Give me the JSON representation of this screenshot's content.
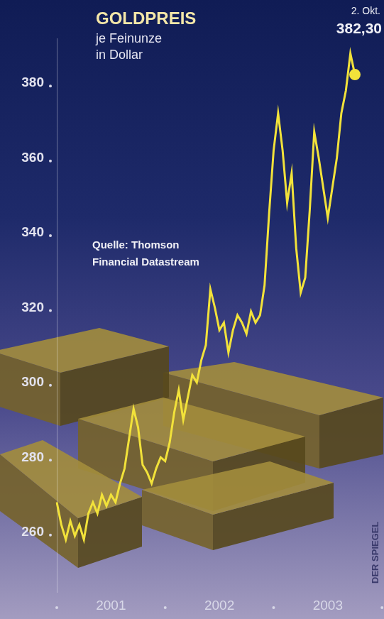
{
  "chart_data": {
    "type": "line",
    "title": "GOLDPREIS",
    "subtitle": [
      "je Feinunze",
      "in Dollar"
    ],
    "source": [
      "Quelle: Thomson",
      "Financial Datastream"
    ],
    "credit": "DER SPIEGEL",
    "annotations": [
      {
        "text": "2. Okt."
      },
      {
        "text": "382,30",
        "value": 382.3
      }
    ],
    "categories": [
      null,
      null,
      null,
      null,
      null,
      null,
      null,
      null,
      null,
      null,
      null,
      null,
      "2001",
      null,
      null,
      null,
      null,
      null,
      null,
      null,
      null,
      null,
      null,
      null,
      null,
      null,
      null,
      null,
      null,
      null,
      null,
      null,
      null,
      null,
      null,
      null,
      "2002",
      null,
      null,
      null,
      null,
      null,
      null,
      null,
      null,
      null,
      null,
      null,
      null,
      null,
      null,
      null,
      null,
      null,
      null,
      null,
      null,
      null,
      null,
      null,
      "2003",
      null,
      null,
      null,
      null,
      null,
      null
    ],
    "values": [
      268,
      262,
      258,
      263,
      259,
      262,
      258,
      265,
      268,
      265,
      270,
      267,
      270,
      268,
      273,
      277,
      285,
      293,
      288,
      278,
      276,
      273,
      277,
      280,
      279,
      284,
      292,
      298,
      290,
      296,
      302,
      300,
      306,
      310,
      325,
      320,
      314,
      316,
      308,
      314,
      318,
      316,
      313,
      319,
      316,
      318,
      326,
      345,
      362,
      372,
      362,
      348,
      356,
      336,
      324,
      328,
      346,
      367,
      360,
      352,
      344,
      352,
      360,
      372,
      378,
      388,
      382.3
    ],
    "color": "#f2e23a",
    "ylim": [
      244,
      392
    ],
    "yticks": [
      260,
      280,
      300,
      320,
      340,
      360,
      380
    ],
    "grid": false
  }
}
